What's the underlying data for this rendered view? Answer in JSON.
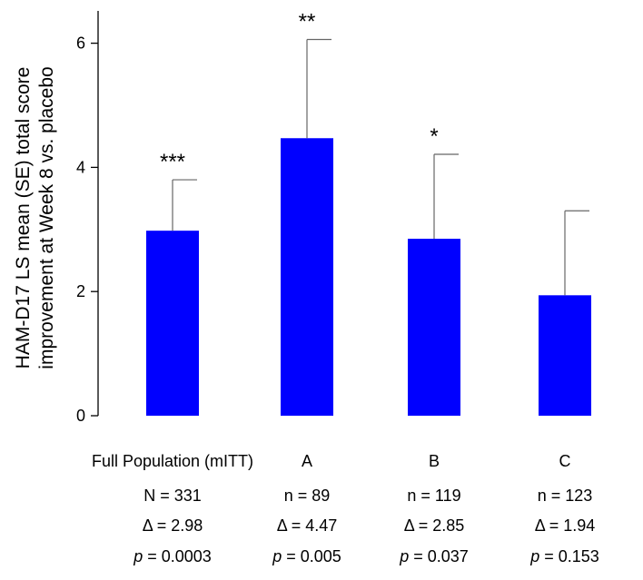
{
  "chart_data": {
    "type": "bar",
    "title": "",
    "ylabel_lines": [
      "HAM-D17 LS mean (SE) total score",
      "improvement at Week 8 vs. placebo"
    ],
    "xlabel": "",
    "ylim": [
      0,
      6.5
    ],
    "yticks": [
      0,
      2,
      4,
      6
    ],
    "grid": false,
    "bar_color": "#0000ff",
    "error_color": "#666666",
    "categories": [
      "Full Population (mITT)",
      "A",
      "B",
      "C"
    ],
    "values": [
      2.98,
      4.47,
      2.85,
      1.94
    ],
    "error_upper": [
      3.8,
      6.06,
      4.21,
      3.3
    ],
    "significance": [
      "***",
      "**",
      "*",
      ""
    ],
    "n_labels": [
      "N = 331",
      "n = 89",
      "n = 119",
      "n = 123"
    ],
    "delta_labels": [
      "Δ = 2.98",
      "Δ = 4.47",
      "Δ = 2.85",
      "Δ = 1.94"
    ],
    "p_prefix": "p",
    "p_values": [
      "= 0.0003",
      "= 0.005",
      "= 0.037",
      "= 0.153"
    ]
  }
}
